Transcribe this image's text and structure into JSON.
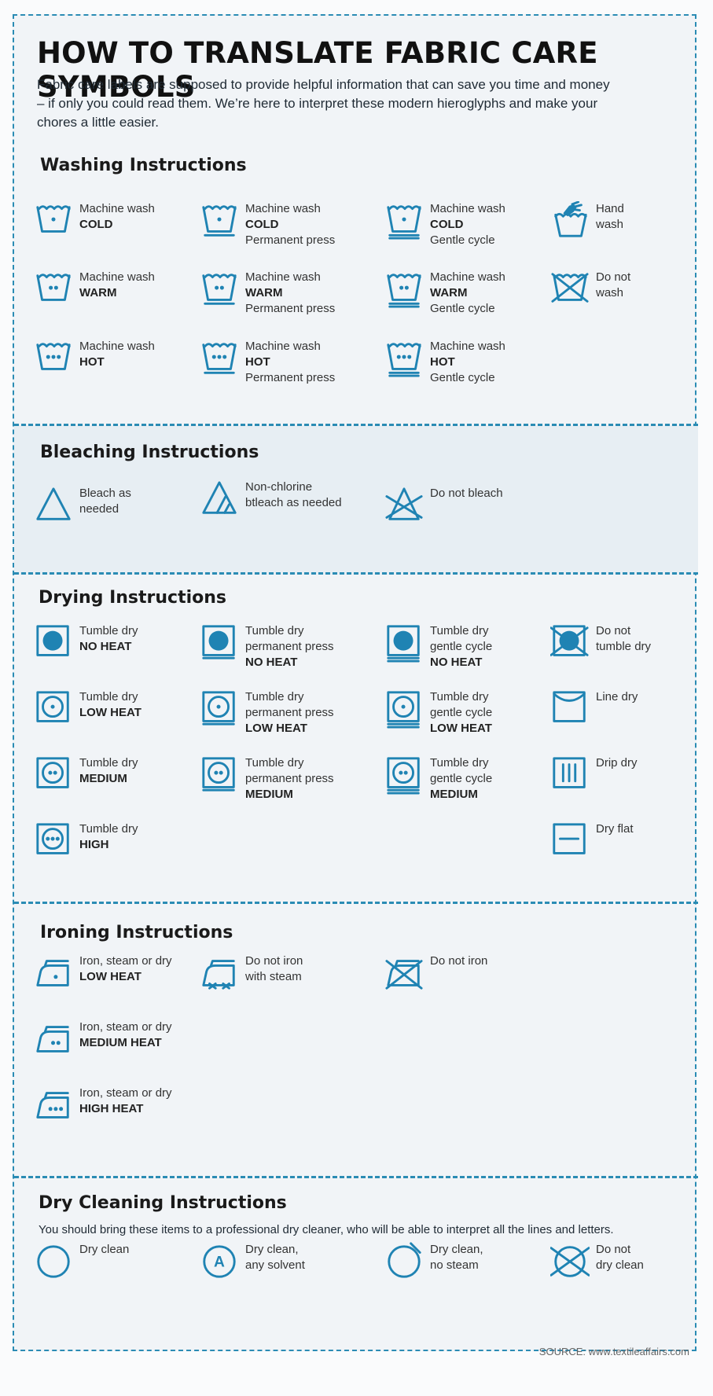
{
  "title": "HOW TO TRANSLATE FABRIC CARE SYMBOLS",
  "intro": "Fabric care labels are supposed to provide helpful information that can save you time and money – if only you could read them. We’re here to interpret these modern hieroglyphs and make your chores a little easier.",
  "accent_color": "#1f83b3",
  "sections": {
    "washing": {
      "title": "Washing Instructions",
      "items": [
        {
          "icon": "wash-cold-icon",
          "l1": "Machine wash",
          "l2": "COLD",
          "l3": ""
        },
        {
          "icon": "wash-cold-permanent-press-icon",
          "l1": "Machine wash",
          "l2": "COLD",
          "l3": "Permanent press"
        },
        {
          "icon": "wash-cold-gentle-icon",
          "l1": "Machine wash",
          "l2": "COLD",
          "l3": "Gentle cycle"
        },
        {
          "icon": "hand-wash-icon",
          "l1": "Hand",
          "l2": "wash",
          "l3": ""
        },
        {
          "icon": "wash-warm-icon",
          "l1": "Machine wash",
          "l2": "WARM",
          "l3": ""
        },
        {
          "icon": "wash-warm-permanent-press-icon",
          "l1": "Machine wash",
          "l2": "WARM",
          "l3": "Permanent press"
        },
        {
          "icon": "wash-warm-gentle-icon",
          "l1": "Machine wash",
          "l2": "WARM",
          "l3": "Gentle cycle"
        },
        {
          "icon": "do-not-wash-icon",
          "l1": "Do not",
          "l2": "wash",
          "l3": ""
        },
        {
          "icon": "wash-hot-icon",
          "l1": "Machine wash",
          "l2": "HOT",
          "l3": ""
        },
        {
          "icon": "wash-hot-permanent-press-icon",
          "l1": "Machine wash",
          "l2": "HOT",
          "l3": "Permanent press"
        },
        {
          "icon": "wash-hot-gentle-icon",
          "l1": "Machine wash",
          "l2": "HOT",
          "l3": "Gentle cycle"
        }
      ]
    },
    "bleaching": {
      "title": "Bleaching Instructions",
      "items": [
        {
          "icon": "bleach-icon",
          "l1": "Bleach as",
          "l2": "needed"
        },
        {
          "icon": "non-chlorine-bleach-icon",
          "l1": "Non-chlorine",
          "l2": "btleach as needed"
        },
        {
          "icon": "do-not-bleach-icon",
          "l1": "Do not bleach",
          "l2": ""
        }
      ]
    },
    "drying": {
      "title": "Drying Instructions",
      "items": [
        {
          "icon": "tumble-dry-no-heat-icon",
          "l1": "Tumble dry",
          "l2": "NO HEAT",
          "l3": ""
        },
        {
          "icon": "tumble-dry-permanent-press-no-heat-icon",
          "l1": "Tumble dry",
          "l2": "permanent press",
          "l3": "NO HEAT"
        },
        {
          "icon": "tumble-dry-gentle-no-heat-icon",
          "l1": "Tumble dry",
          "l2": "gentle cycle",
          "l3": "NO HEAT"
        },
        {
          "icon": "do-not-tumble-dry-icon",
          "l1": "Do not",
          "l2": "tumble dry",
          "l3": ""
        },
        {
          "icon": "tumble-dry-low-icon",
          "l1": "Tumble dry",
          "l2": "LOW HEAT",
          "l3": ""
        },
        {
          "icon": "tumble-dry-permanent-press-low-icon",
          "l1": "Tumble dry",
          "l2": "permanent press",
          "l3": "LOW HEAT"
        },
        {
          "icon": "tumble-dry-gentle-low-icon",
          "l1": "Tumble dry",
          "l2": "gentle cycle",
          "l3": "LOW HEAT"
        },
        {
          "icon": "line-dry-icon",
          "l1": "Line dry",
          "l2": "",
          "l3": ""
        },
        {
          "icon": "tumble-dry-medium-icon",
          "l1": "Tumble dry",
          "l2": "MEDIUM",
          "l3": ""
        },
        {
          "icon": "tumble-dry-permanent-press-medium-icon",
          "l1": "Tumble dry",
          "l2": "permanent press",
          "l3": "MEDIUM"
        },
        {
          "icon": "tumble-dry-gentle-medium-icon",
          "l1": "Tumble dry",
          "l2": "gentle cycle",
          "l3": "MEDIUM"
        },
        {
          "icon": "drip-dry-icon",
          "l1": "Drip dry",
          "l2": "",
          "l3": ""
        },
        {
          "icon": "tumble-dry-high-icon",
          "l1": "Tumble dry",
          "l2": "HIGH",
          "l3": ""
        },
        {
          "icon": "dry-flat-icon",
          "l1": "Dry flat",
          "l2": "",
          "l3": ""
        }
      ]
    },
    "ironing": {
      "title": "Ironing Instructions",
      "items": [
        {
          "icon": "iron-low-heat-icon",
          "l1": "Iron, steam or dry",
          "l2": "LOW HEAT"
        },
        {
          "icon": "do-not-iron-with-steam-icon",
          "l1": "Do not iron",
          "l2": "with steam"
        },
        {
          "icon": "do-not-iron-icon",
          "l1": "Do not iron",
          "l2": ""
        },
        {
          "icon": "iron-medium-heat-icon",
          "l1": "Iron, steam or dry",
          "l2": "MEDIUM HEAT"
        },
        {
          "icon": "iron-high-heat-icon",
          "l1": "Iron, steam or dry",
          "l2": "HIGH HEAT"
        }
      ]
    },
    "dry_cleaning": {
      "title": "Dry Cleaning Instructions",
      "note": "You should bring these items to a professional dry cleaner, who will be able to interpret all the lines and letters.",
      "items": [
        {
          "icon": "dry-clean-icon",
          "l1": "Dry clean",
          "l2": ""
        },
        {
          "icon": "dry-clean-any-solvent-icon",
          "l1": "Dry clean,",
          "l2": "any solvent",
          "letter": "A"
        },
        {
          "icon": "dry-clean-no-steam-icon",
          "l1": "Dry clean,",
          "l2": "no steam"
        },
        {
          "icon": "do-not-dry-clean-icon",
          "l1": "Do not",
          "l2": "dry clean"
        }
      ]
    }
  },
  "source": "SOURCE: www.textileaffairs.com"
}
